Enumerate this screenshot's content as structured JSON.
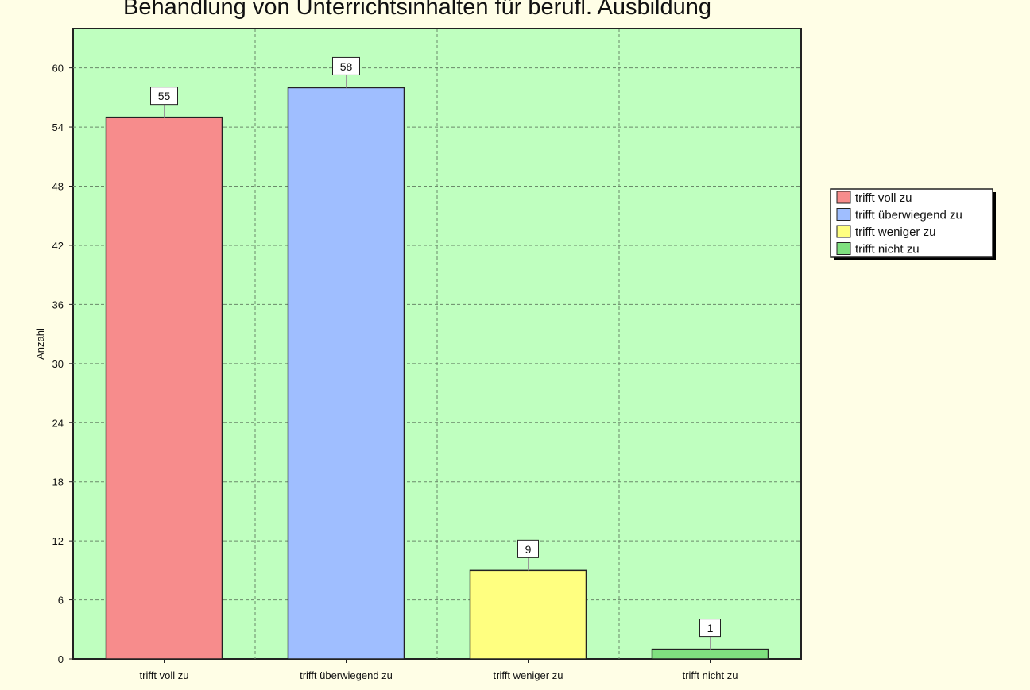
{
  "chart_data": {
    "type": "bar",
    "title": "Behandlung von Unterrichtsinhalten für berufl. Ausbildung",
    "xlabel": "",
    "ylabel": "Anzahl",
    "categories": [
      "trifft voll zu",
      "trifft überwiegend zu",
      "trifft weniger zu",
      "trifft nicht zu"
    ],
    "values": [
      55,
      58,
      9,
      1
    ],
    "data_labels": [
      "55",
      "58",
      "9",
      "1"
    ],
    "colors": [
      "#f78c8c",
      "#9fbeff",
      "#ffff80",
      "#7fe07f"
    ],
    "ylim": [
      0,
      64
    ],
    "yticks": [
      0,
      6,
      12,
      18,
      24,
      30,
      36,
      42,
      48,
      54,
      60
    ],
    "grid": true,
    "plot_background": "#bfffbf",
    "page_background": "#fffee6",
    "legend": {
      "placement": "right",
      "entries": [
        "trifft voll zu",
        "trifft überwiegend zu",
        "trifft weniger zu",
        "trifft nicht zu"
      ]
    }
  }
}
